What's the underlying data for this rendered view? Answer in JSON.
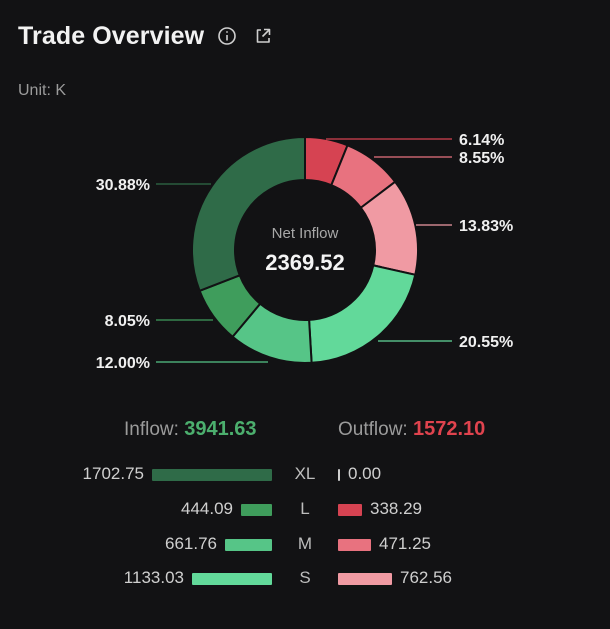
{
  "header": {
    "title": "Trade Overview",
    "info_icon": "info-icon",
    "share_icon": "share-icon"
  },
  "unit_label": "Unit: K",
  "center": {
    "label": "Net Inflow",
    "value": "2369.52"
  },
  "summary": {
    "inflow_label": "Inflow:",
    "inflow_value": "3941.63",
    "outflow_label": "Outflow:",
    "outflow_value": "1572.10"
  },
  "chart_data": {
    "type": "pie",
    "donut": true,
    "slices": [
      {
        "label": "6.14%",
        "value": 6.14,
        "color": "#d64352",
        "side": "right"
      },
      {
        "label": "8.55%",
        "value": 8.55,
        "color": "#e8727f",
        "side": "right"
      },
      {
        "label": "13.83%",
        "value": 13.83,
        "color": "#f09aa3",
        "side": "right"
      },
      {
        "label": "20.55%",
        "value": 20.55,
        "color": "#62d99a",
        "side": "right"
      },
      {
        "label": "12.00%",
        "value": 12.0,
        "color": "#56c587",
        "side": "left"
      },
      {
        "label": "8.05%",
        "value": 8.05,
        "color": "#3f9d5c",
        "side": "left"
      },
      {
        "label": "30.88%",
        "value": 30.88,
        "color": "#2f6b48",
        "side": "left"
      }
    ]
  },
  "flows": {
    "max": 1702.75,
    "rows": [
      {
        "cat": "XL",
        "inflow": "1702.75",
        "inflow_num": 1702.75,
        "outflow": "0.00",
        "outflow_num": 0,
        "in_color": "#2f6b48",
        "out_color": "#d64352"
      },
      {
        "cat": "L",
        "inflow": "444.09",
        "inflow_num": 444.09,
        "outflow": "338.29",
        "outflow_num": 338.29,
        "in_color": "#3f9d5c",
        "out_color": "#d64352"
      },
      {
        "cat": "M",
        "inflow": "661.76",
        "inflow_num": 661.76,
        "outflow": "471.25",
        "outflow_num": 471.25,
        "in_color": "#56c587",
        "out_color": "#e8727f"
      },
      {
        "cat": "S",
        "inflow": "1133.03",
        "inflow_num": 1133.03,
        "outflow": "762.56",
        "outflow_num": 762.56,
        "in_color": "#62d99a",
        "out_color": "#f09aa3"
      }
    ]
  }
}
